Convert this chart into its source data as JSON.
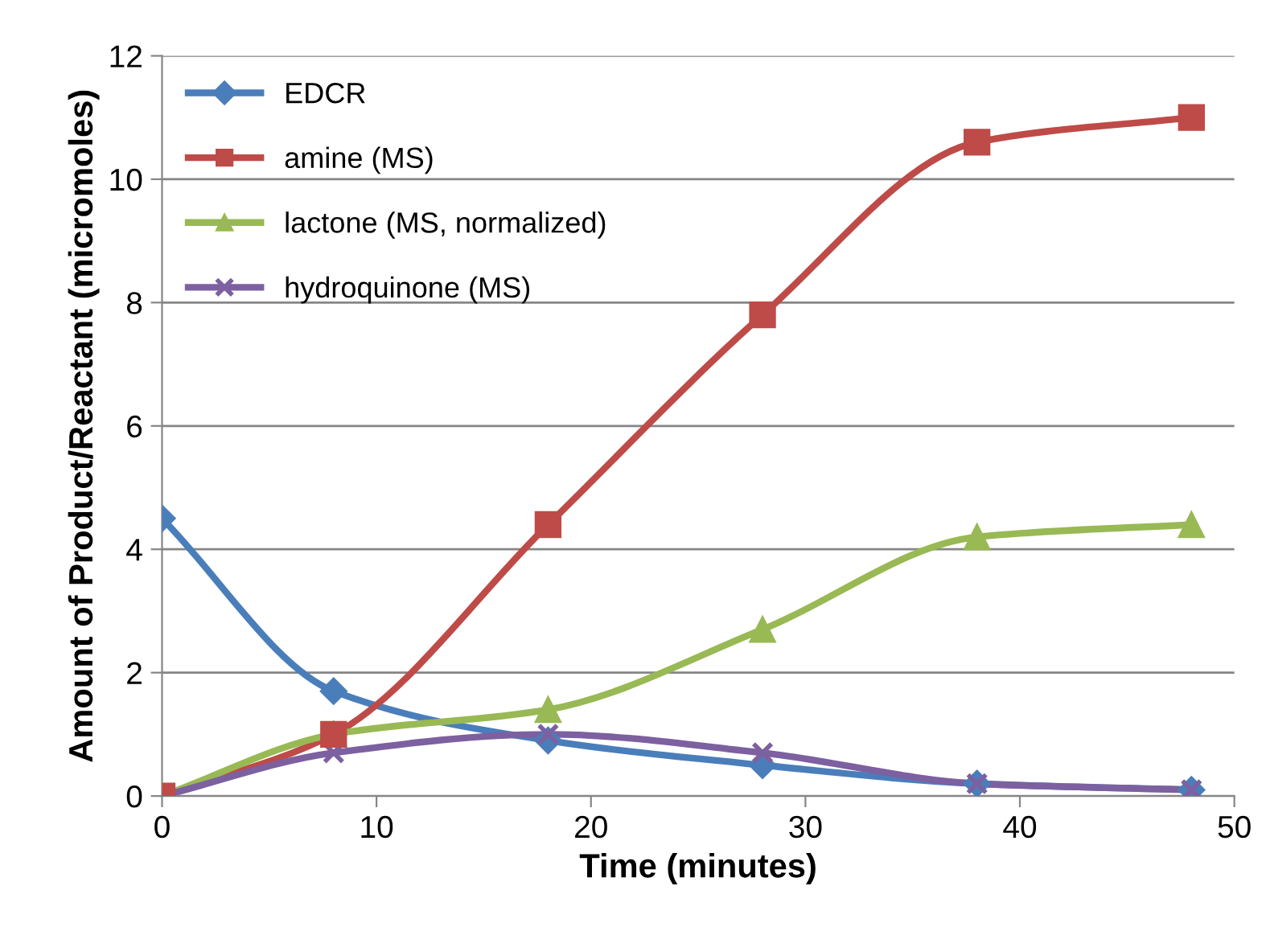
{
  "chart_data": {
    "type": "line",
    "xlabel": "Time (minutes)",
    "ylabel": "Amount of Product/Reactant (micromoles)",
    "x": [
      0,
      8,
      18,
      28,
      38,
      48
    ],
    "series": [
      {
        "name": "EDCR",
        "color": "#4a7ebb",
        "marker": "diamond",
        "values": [
          4.5,
          1.7,
          0.9,
          0.5,
          0.2,
          0.1
        ]
      },
      {
        "name": "amine (MS)",
        "color": "#be4b48",
        "marker": "square",
        "values": [
          0,
          1.0,
          4.4,
          7.8,
          10.6,
          11.0
        ]
      },
      {
        "name": "lactone (MS, normalized)",
        "color": "#98b954",
        "marker": "triangle",
        "values": [
          0,
          1.0,
          1.4,
          2.7,
          4.2,
          4.4
        ]
      },
      {
        "name": "hydroquinone (MS)",
        "color": "#7d60a0",
        "marker": "cross",
        "values": [
          0,
          0.7,
          1.0,
          0.7,
          0.2,
          0.1
        ]
      }
    ],
    "xlim": [
      0,
      50
    ],
    "xticks": [
      0,
      10,
      20,
      30,
      40,
      50
    ],
    "ylim": [
      0,
      12
    ],
    "yticks": [
      0,
      2,
      4,
      6,
      8,
      10,
      12
    ],
    "grid": "y",
    "legend": "top left",
    "line_style": "solid"
  }
}
